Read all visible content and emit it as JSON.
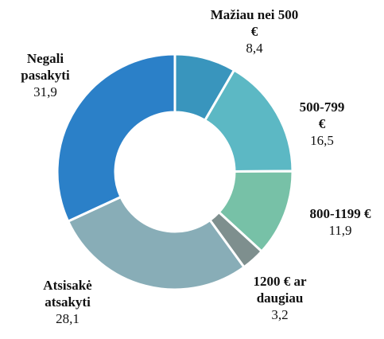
{
  "chart_data": {
    "type": "donut",
    "categories": [
      "Mažiau nei 500 €",
      "500-799 €",
      "800-1199 €",
      "1200 € ar daugiau",
      "Atsisakė atsakyti",
      "Negali pasakyti"
    ],
    "values": [
      8.4,
      16.5,
      11.9,
      3.2,
      28.1,
      31.9
    ],
    "value_labels": [
      "8,4",
      "16,5",
      "11,9",
      "3,2",
      "28,1",
      "31,9"
    ],
    "colors": [
      "#3995bd",
      "#5cb8c4",
      "#77c1a7",
      "#7e8f8e",
      "#88adb7",
      "#2b80c8"
    ]
  }
}
